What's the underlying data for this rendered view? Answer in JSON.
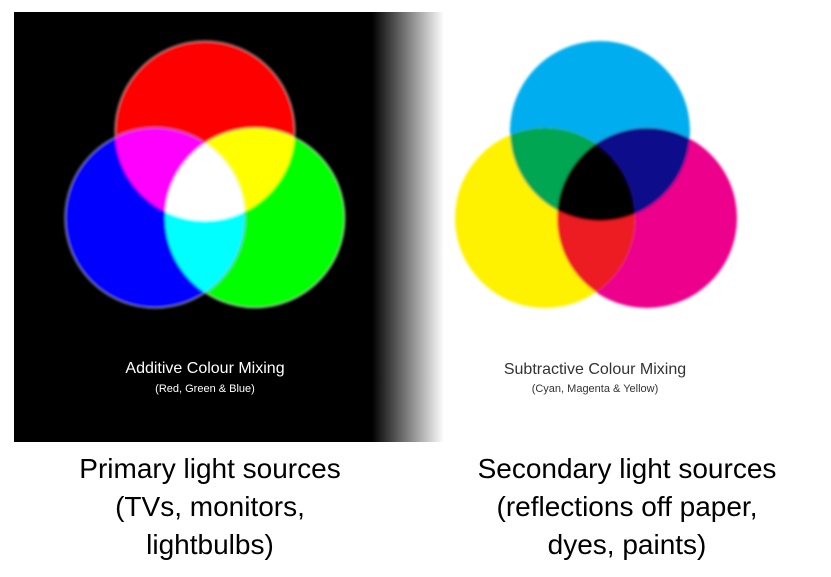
{
  "additive": {
    "title": "Additive Colour Mixing",
    "subtitle": "(Red, Green & Blue)",
    "note_lines": [
      "Primary light sources",
      "(TVs, monitors,",
      "lightbulbs)"
    ],
    "colors": {
      "red": "#ff0000",
      "green": "#00ff00",
      "blue": "#0000ff",
      "yellow": "#ffff00",
      "magenta": "#ff00ff",
      "cyan": "#00ffff",
      "white": "#ffffff"
    }
  },
  "subtractive": {
    "title": "Subtractive Colour Mixing",
    "subtitle": "(Cyan, Magenta & Yellow)",
    "note_lines": [
      "Secondary light sources",
      "(reflections off paper,",
      "dyes, paints)"
    ],
    "colors": {
      "cyan": "#00aeef",
      "magenta": "#ec008c",
      "yellow": "#fff200",
      "green": "#00a651",
      "blue": "#0b0a8c",
      "red": "#ed1c24",
      "black": "#000000"
    }
  }
}
